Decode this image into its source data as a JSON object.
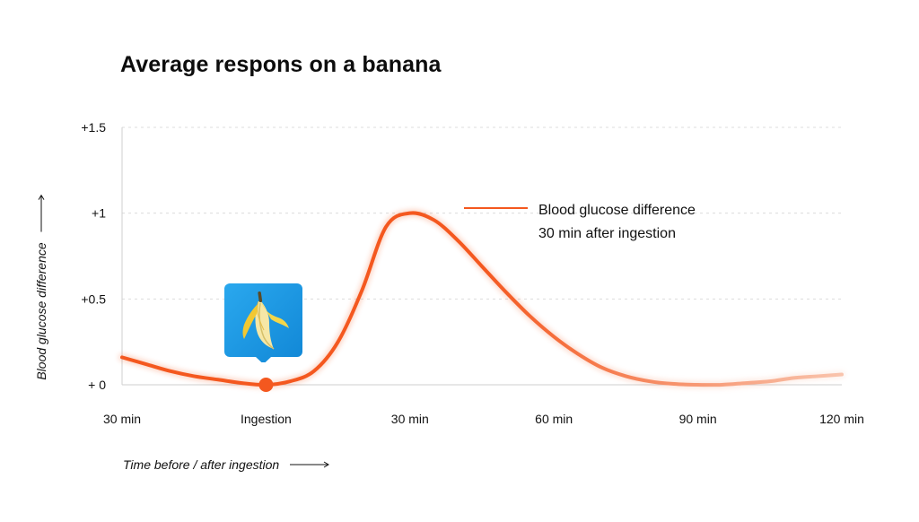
{
  "chart_data": {
    "type": "line",
    "title": "Average respons on a banana",
    "xlabel": "Time before / after ingestion",
    "ylabel": "Blood glucose difference",
    "x_ticks": [
      "30 min",
      "Ingestion",
      "30 min",
      "60 min",
      "90 min",
      "120 min"
    ],
    "x_tick_values": [
      -30,
      0,
      30,
      60,
      90,
      120
    ],
    "y_ticks": [
      "+ 0",
      "+0.5",
      "+1",
      "+1.5"
    ],
    "y_tick_values": [
      0,
      0.5,
      1,
      1.5
    ],
    "xlim": [
      -30,
      120
    ],
    "ylim": [
      0,
      1.5
    ],
    "grid": "horizontal dashed",
    "series": [
      {
        "name": "Blood glucose difference 30 min after ingestion",
        "color": "#f4581f",
        "x": [
          -30,
          -25,
          -20,
          -15,
          -10,
          -5,
          0,
          5,
          10,
          15,
          20,
          25,
          30,
          35,
          40,
          45,
          50,
          55,
          60,
          65,
          70,
          75,
          80,
          85,
          90,
          95,
          100,
          105,
          110,
          115,
          120
        ],
        "y": [
          0.16,
          0.12,
          0.08,
          0.05,
          0.03,
          0.01,
          0.0,
          0.02,
          0.08,
          0.25,
          0.55,
          0.92,
          1.0,
          0.96,
          0.84,
          0.69,
          0.54,
          0.4,
          0.28,
          0.18,
          0.1,
          0.05,
          0.02,
          0.005,
          0.0,
          0.0,
          0.01,
          0.02,
          0.04,
          0.05,
          0.06
        ]
      }
    ],
    "marker": {
      "x": 0,
      "y": 0,
      "icon": "banana-icon"
    }
  }
}
